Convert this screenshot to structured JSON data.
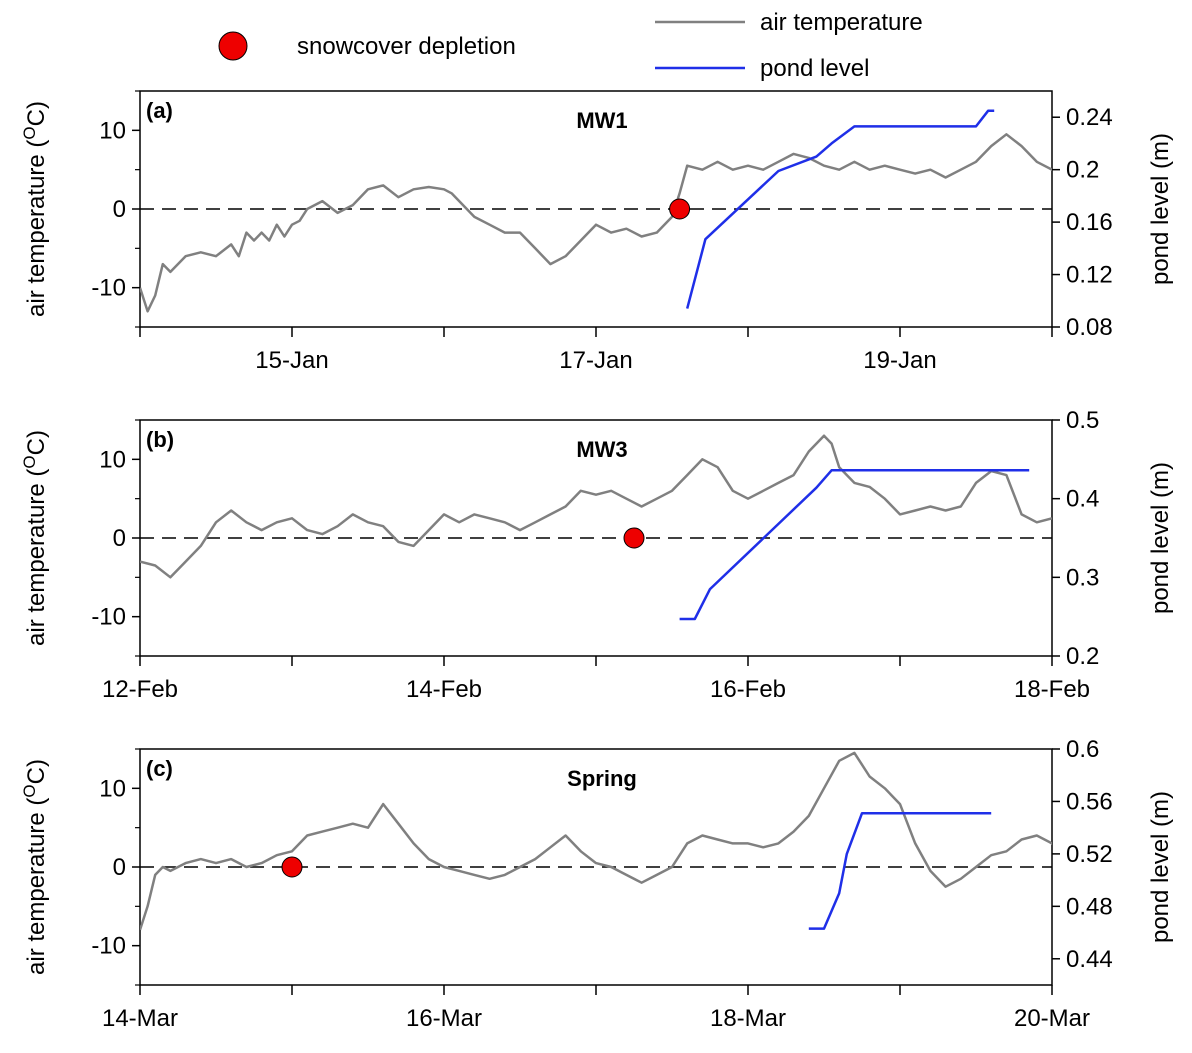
{
  "legend": {
    "snow_label": "snowcover depletion",
    "air_label": "air temperature",
    "pond_label": "pond level"
  },
  "colors": {
    "air": "#808080",
    "pond": "#1f2fe8",
    "marker": "#ee0000",
    "axis": "#000000"
  },
  "chart_data": [
    {
      "type": "line",
      "panel_label": "(a)",
      "title": "MW1",
      "ylabel_left": "air temperature (°C)",
      "ylabel_right": "pond level (m)",
      "x_range_days": [
        14,
        20
      ],
      "x_tick_labels": [
        {
          "day": 15,
          "label": "15-Jan"
        },
        {
          "day": 17,
          "label": "17-Jan"
        },
        {
          "day": 19,
          "label": "19-Jan"
        }
      ],
      "x_minor_ticks": [
        14,
        15,
        16,
        17,
        18,
        19,
        20
      ],
      "ylim_left": [
        -15,
        15
      ],
      "yticks_left": [
        -10,
        0,
        10
      ],
      "ylim_right": [
        0.08,
        0.26
      ],
      "yticks_right": [
        0.08,
        0.12,
        0.16,
        0.2,
        0.24
      ],
      "yticks_right_labels": [
        "0.08",
        "0.12",
        "0.16",
        "0.2",
        "0.24"
      ],
      "zero_line": true,
      "air_temperature": [
        [
          14.0,
          -10
        ],
        [
          14.05,
          -13
        ],
        [
          14.1,
          -11
        ],
        [
          14.15,
          -7
        ],
        [
          14.2,
          -8
        ],
        [
          14.3,
          -6
        ],
        [
          14.4,
          -5.5
        ],
        [
          14.5,
          -6
        ],
        [
          14.6,
          -4.5
        ],
        [
          14.65,
          -6
        ],
        [
          14.7,
          -3
        ],
        [
          14.75,
          -4
        ],
        [
          14.8,
          -3
        ],
        [
          14.85,
          -4
        ],
        [
          14.9,
          -2
        ],
        [
          14.95,
          -3.5
        ],
        [
          15.0,
          -2
        ],
        [
          15.05,
          -1.5
        ],
        [
          15.1,
          0
        ],
        [
          15.2,
          1
        ],
        [
          15.3,
          -0.5
        ],
        [
          15.4,
          0.5
        ],
        [
          15.5,
          2.5
        ],
        [
          15.6,
          3
        ],
        [
          15.7,
          1.5
        ],
        [
          15.8,
          2.5
        ],
        [
          15.9,
          2.8
        ],
        [
          16.0,
          2.5
        ],
        [
          16.05,
          2
        ],
        [
          16.1,
          1
        ],
        [
          16.2,
          -1
        ],
        [
          16.3,
          -2
        ],
        [
          16.4,
          -3
        ],
        [
          16.5,
          -3
        ],
        [
          16.6,
          -5
        ],
        [
          16.7,
          -7
        ],
        [
          16.8,
          -6
        ],
        [
          16.9,
          -4
        ],
        [
          17.0,
          -2
        ],
        [
          17.1,
          -3
        ],
        [
          17.2,
          -2.5
        ],
        [
          17.3,
          -3.5
        ],
        [
          17.4,
          -3
        ],
        [
          17.5,
          -1
        ],
        [
          17.55,
          2
        ],
        [
          17.6,
          5.5
        ],
        [
          17.7,
          5
        ],
        [
          17.8,
          6
        ],
        [
          17.9,
          5
        ],
        [
          18.0,
          5.5
        ],
        [
          18.1,
          5
        ],
        [
          18.2,
          6
        ],
        [
          18.3,
          7
        ],
        [
          18.4,
          6.5
        ],
        [
          18.5,
          5.5
        ],
        [
          18.6,
          5
        ],
        [
          18.7,
          6
        ],
        [
          18.8,
          5
        ],
        [
          18.9,
          5.5
        ],
        [
          19.0,
          5
        ],
        [
          19.1,
          4.5
        ],
        [
          19.2,
          5
        ],
        [
          19.3,
          4
        ],
        [
          19.4,
          5
        ],
        [
          19.5,
          6
        ],
        [
          19.6,
          8
        ],
        [
          19.7,
          9.5
        ],
        [
          19.8,
          8
        ],
        [
          19.9,
          6
        ],
        [
          20.0,
          5
        ],
        [
          20.1,
          4.5
        ],
        [
          20.2,
          5
        ],
        [
          20.3,
          3.5
        ],
        [
          20.4,
          4
        ],
        [
          20.5,
          3
        ],
        [
          20.6,
          4
        ],
        [
          20.7,
          3.5
        ],
        [
          20.8,
          2.5
        ],
        [
          20.9,
          3
        ],
        [
          21.0,
          4
        ],
        [
          21.1,
          6
        ],
        [
          21.2,
          7
        ],
        [
          21.3,
          5
        ],
        [
          21.4,
          4.5
        ],
        [
          21.5,
          4
        ]
      ],
      "pond_level": [
        [
          17.6,
          0.094
        ],
        [
          17.72,
          0.147
        ],
        [
          18.2,
          0.199
        ],
        [
          18.45,
          0.21
        ],
        [
          18.55,
          0.22
        ],
        [
          18.7,
          0.233
        ],
        [
          19.5,
          0.233
        ],
        [
          19.58,
          0.245
        ],
        [
          19.62,
          0.245
        ]
      ],
      "snowcover_depletion": [
        [
          17.55,
          0
        ]
      ]
    },
    {
      "type": "line",
      "panel_label": "(b)",
      "title": "MW3",
      "ylabel_left": "air temperature (°C)",
      "ylabel_right": "pond level (m)",
      "x_range_days": [
        12,
        18
      ],
      "x_tick_labels": [
        {
          "day": 12,
          "label": "12-Feb"
        },
        {
          "day": 14,
          "label": "14-Feb"
        },
        {
          "day": 16,
          "label": "16-Feb"
        },
        {
          "day": 18,
          "label": "18-Feb"
        }
      ],
      "x_minor_ticks": [
        12,
        13,
        14,
        15,
        16,
        17,
        18
      ],
      "ylim_left": [
        -15,
        15
      ],
      "yticks_left": [
        -10,
        0,
        10
      ],
      "ylim_right": [
        0.2,
        0.5
      ],
      "yticks_right": [
        0.2,
        0.3,
        0.4,
        0.5
      ],
      "yticks_right_labels": [
        "0.2",
        "0.3",
        "0.4",
        "0.5"
      ],
      "zero_line": true,
      "air_temperature": [
        [
          12.0,
          -3
        ],
        [
          12.1,
          -3.5
        ],
        [
          12.2,
          -5
        ],
        [
          12.3,
          -3
        ],
        [
          12.4,
          -1
        ],
        [
          12.5,
          2
        ],
        [
          12.6,
          3.5
        ],
        [
          12.7,
          2
        ],
        [
          12.8,
          1
        ],
        [
          12.9,
          2
        ],
        [
          13.0,
          2.5
        ],
        [
          13.1,
          1
        ],
        [
          13.2,
          0.5
        ],
        [
          13.3,
          1.5
        ],
        [
          13.4,
          3
        ],
        [
          13.5,
          2
        ],
        [
          13.6,
          1.5
        ],
        [
          13.7,
          -0.5
        ],
        [
          13.8,
          -1
        ],
        [
          13.9,
          1
        ],
        [
          14.0,
          3
        ],
        [
          14.1,
          2
        ],
        [
          14.2,
          3
        ],
        [
          14.3,
          2.5
        ],
        [
          14.4,
          2
        ],
        [
          14.5,
          1
        ],
        [
          14.6,
          2
        ],
        [
          14.7,
          3
        ],
        [
          14.8,
          4
        ],
        [
          14.9,
          6
        ],
        [
          15.0,
          5.5
        ],
        [
          15.1,
          6
        ],
        [
          15.2,
          5
        ],
        [
          15.3,
          4
        ],
        [
          15.4,
          5
        ],
        [
          15.5,
          6
        ],
        [
          15.6,
          8
        ],
        [
          15.7,
          10
        ],
        [
          15.8,
          9
        ],
        [
          15.9,
          6
        ],
        [
          16.0,
          5
        ],
        [
          16.1,
          6
        ],
        [
          16.2,
          7
        ],
        [
          16.3,
          8
        ],
        [
          16.4,
          11
        ],
        [
          16.5,
          13
        ],
        [
          16.55,
          12
        ],
        [
          16.6,
          9
        ],
        [
          16.7,
          7
        ],
        [
          16.8,
          6.5
        ],
        [
          16.9,
          5
        ],
        [
          17.0,
          3
        ],
        [
          17.1,
          3.5
        ],
        [
          17.2,
          4
        ],
        [
          17.3,
          3.5
        ],
        [
          17.4,
          4
        ],
        [
          17.5,
          7
        ],
        [
          17.6,
          8.5
        ],
        [
          17.7,
          8
        ],
        [
          17.8,
          3
        ],
        [
          17.9,
          2
        ],
        [
          18.0,
          2.5
        ]
      ],
      "pond_level": [
        [
          15.55,
          0.247
        ],
        [
          15.65,
          0.247
        ],
        [
          15.75,
          0.285
        ],
        [
          16.45,
          0.414
        ],
        [
          16.55,
          0.436
        ],
        [
          17.85,
          0.436
        ]
      ],
      "snowcover_depletion": [
        [
          15.25,
          0
        ]
      ]
    },
    {
      "type": "line",
      "panel_label": "(c)",
      "title": "Spring",
      "ylabel_left": "air temperature (°C)",
      "ylabel_right": "pond level (m)",
      "x_range_days": [
        14,
        20
      ],
      "x_tick_labels": [
        {
          "day": 14,
          "label": "14-Mar"
        },
        {
          "day": 16,
          "label": "16-Mar"
        },
        {
          "day": 18,
          "label": "18-Mar"
        },
        {
          "day": 20,
          "label": "20-Mar"
        }
      ],
      "x_minor_ticks": [
        14,
        15,
        16,
        17,
        18,
        19,
        20
      ],
      "ylim_left": [
        -15,
        15
      ],
      "yticks_left": [
        -10,
        0,
        10
      ],
      "ylim_right": [
        0.42,
        0.6
      ],
      "yticks_right": [
        0.44,
        0.48,
        0.52,
        0.56,
        0.6
      ],
      "yticks_right_labels": [
        "0.44",
        "0.48",
        "0.52",
        "0.56",
        "0.6"
      ],
      "zero_line": true,
      "air_temperature": [
        [
          14.0,
          -8
        ],
        [
          14.05,
          -5
        ],
        [
          14.1,
          -1
        ],
        [
          14.15,
          0
        ],
        [
          14.2,
          -0.5
        ],
        [
          14.3,
          0.5
        ],
        [
          14.4,
          1
        ],
        [
          14.5,
          0.5
        ],
        [
          14.6,
          1
        ],
        [
          14.7,
          0
        ],
        [
          14.8,
          0.5
        ],
        [
          14.9,
          1.5
        ],
        [
          15.0,
          2
        ],
        [
          15.1,
          4
        ],
        [
          15.2,
          4.5
        ],
        [
          15.3,
          5
        ],
        [
          15.4,
          5.5
        ],
        [
          15.5,
          5
        ],
        [
          15.6,
          8
        ],
        [
          15.7,
          5.5
        ],
        [
          15.8,
          3
        ],
        [
          15.9,
          1
        ],
        [
          16.0,
          0
        ],
        [
          16.1,
          -0.5
        ],
        [
          16.2,
          -1
        ],
        [
          16.3,
          -1.5
        ],
        [
          16.4,
          -1
        ],
        [
          16.5,
          0
        ],
        [
          16.6,
          1
        ],
        [
          16.7,
          2.5
        ],
        [
          16.8,
          4
        ],
        [
          16.9,
          2
        ],
        [
          17.0,
          0.5
        ],
        [
          17.1,
          0
        ],
        [
          17.2,
          -1
        ],
        [
          17.3,
          -2
        ],
        [
          17.4,
          -1
        ],
        [
          17.5,
          0
        ],
        [
          17.6,
          3
        ],
        [
          17.7,
          4
        ],
        [
          17.8,
          3.5
        ],
        [
          17.9,
          3
        ],
        [
          18.0,
          3
        ],
        [
          18.1,
          2.5
        ],
        [
          18.2,
          3
        ],
        [
          18.3,
          4.5
        ],
        [
          18.4,
          6.5
        ],
        [
          18.5,
          10
        ],
        [
          18.6,
          13.5
        ],
        [
          18.7,
          14.5
        ],
        [
          18.8,
          11.5
        ],
        [
          18.9,
          10
        ],
        [
          19.0,
          8
        ],
        [
          19.1,
          3
        ],
        [
          19.2,
          -0.5
        ],
        [
          19.3,
          -2.5
        ],
        [
          19.4,
          -1.5
        ],
        [
          19.5,
          0
        ],
        [
          19.6,
          1.5
        ],
        [
          19.7,
          2
        ],
        [
          19.8,
          3.5
        ],
        [
          19.9,
          4
        ],
        [
          20.0,
          3
        ],
        [
          20.1,
          1
        ],
        [
          20.2,
          0
        ],
        [
          20.3,
          -1
        ]
      ],
      "pond_level": [
        [
          18.4,
          0.463
        ],
        [
          18.5,
          0.463
        ],
        [
          18.6,
          0.49
        ],
        [
          18.65,
          0.52
        ],
        [
          18.75,
          0.551
        ],
        [
          19.6,
          0.551
        ]
      ],
      "snowcover_depletion": [
        [
          15.0,
          0
        ]
      ]
    }
  ]
}
